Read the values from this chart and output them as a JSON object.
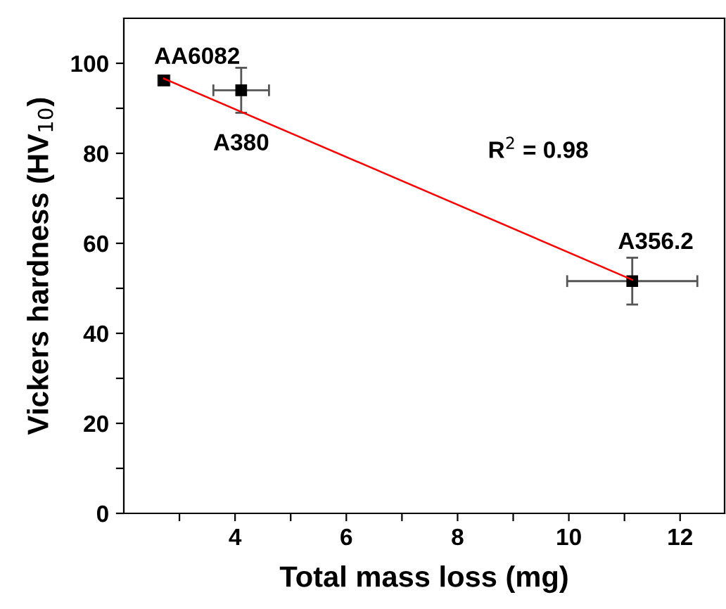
{
  "chart_data": {
    "type": "scatter",
    "xlabel": "Total mass loss (mg)",
    "ylabel": "Vickers hardness (HV$_{10}$)",
    "xlim": [
      2,
      12.8
    ],
    "ylim": [
      0,
      110
    ],
    "xticks": [
      {
        "value": 3,
        "label": null
      },
      4,
      {
        "value": 5,
        "label": null
      },
      6,
      {
        "value": 7,
        "label": null
      },
      8,
      {
        "value": 9,
        "label": null
      },
      10,
      {
        "value": 11,
        "label": null
      },
      12
    ],
    "yticks": [
      0,
      {
        "value": 10,
        "label": null
      },
      20,
      {
        "value": 30,
        "label": null
      },
      40,
      {
        "value": 50,
        "label": null
      },
      60,
      {
        "value": 70,
        "label": null
      },
      80,
      {
        "value": 90,
        "label": null
      },
      100
    ],
    "grid": false,
    "legend": false,
    "series": [
      {
        "marker": "square",
        "color": "#000000",
        "x": [
          2.72,
          4.11,
          11.14
        ],
        "values": [
          96.2,
          94.0,
          51.6
        ],
        "errors": [
          1,
          5,
          5.2
        ],
        "xerrors": [
          0.1,
          0.5,
          1.17
        ]
      },
      {
        "type": "line",
        "marker": "none",
        "color": "#ff0000",
        "x": [
          2.72,
          11.14
        ],
        "values": [
          96.6,
          51.9
        ]
      }
    ],
    "annotations": [
      {
        "text": "AA6082",
        "x": 2.72,
        "y": 96.2
      },
      {
        "text": "A380",
        "x": 4.11,
        "y": 94.0
      },
      {
        "text": "A356.2",
        "x": 11.14,
        "y": 51.6
      },
      "R$^{2}$ = 0.98"
    ]
  }
}
